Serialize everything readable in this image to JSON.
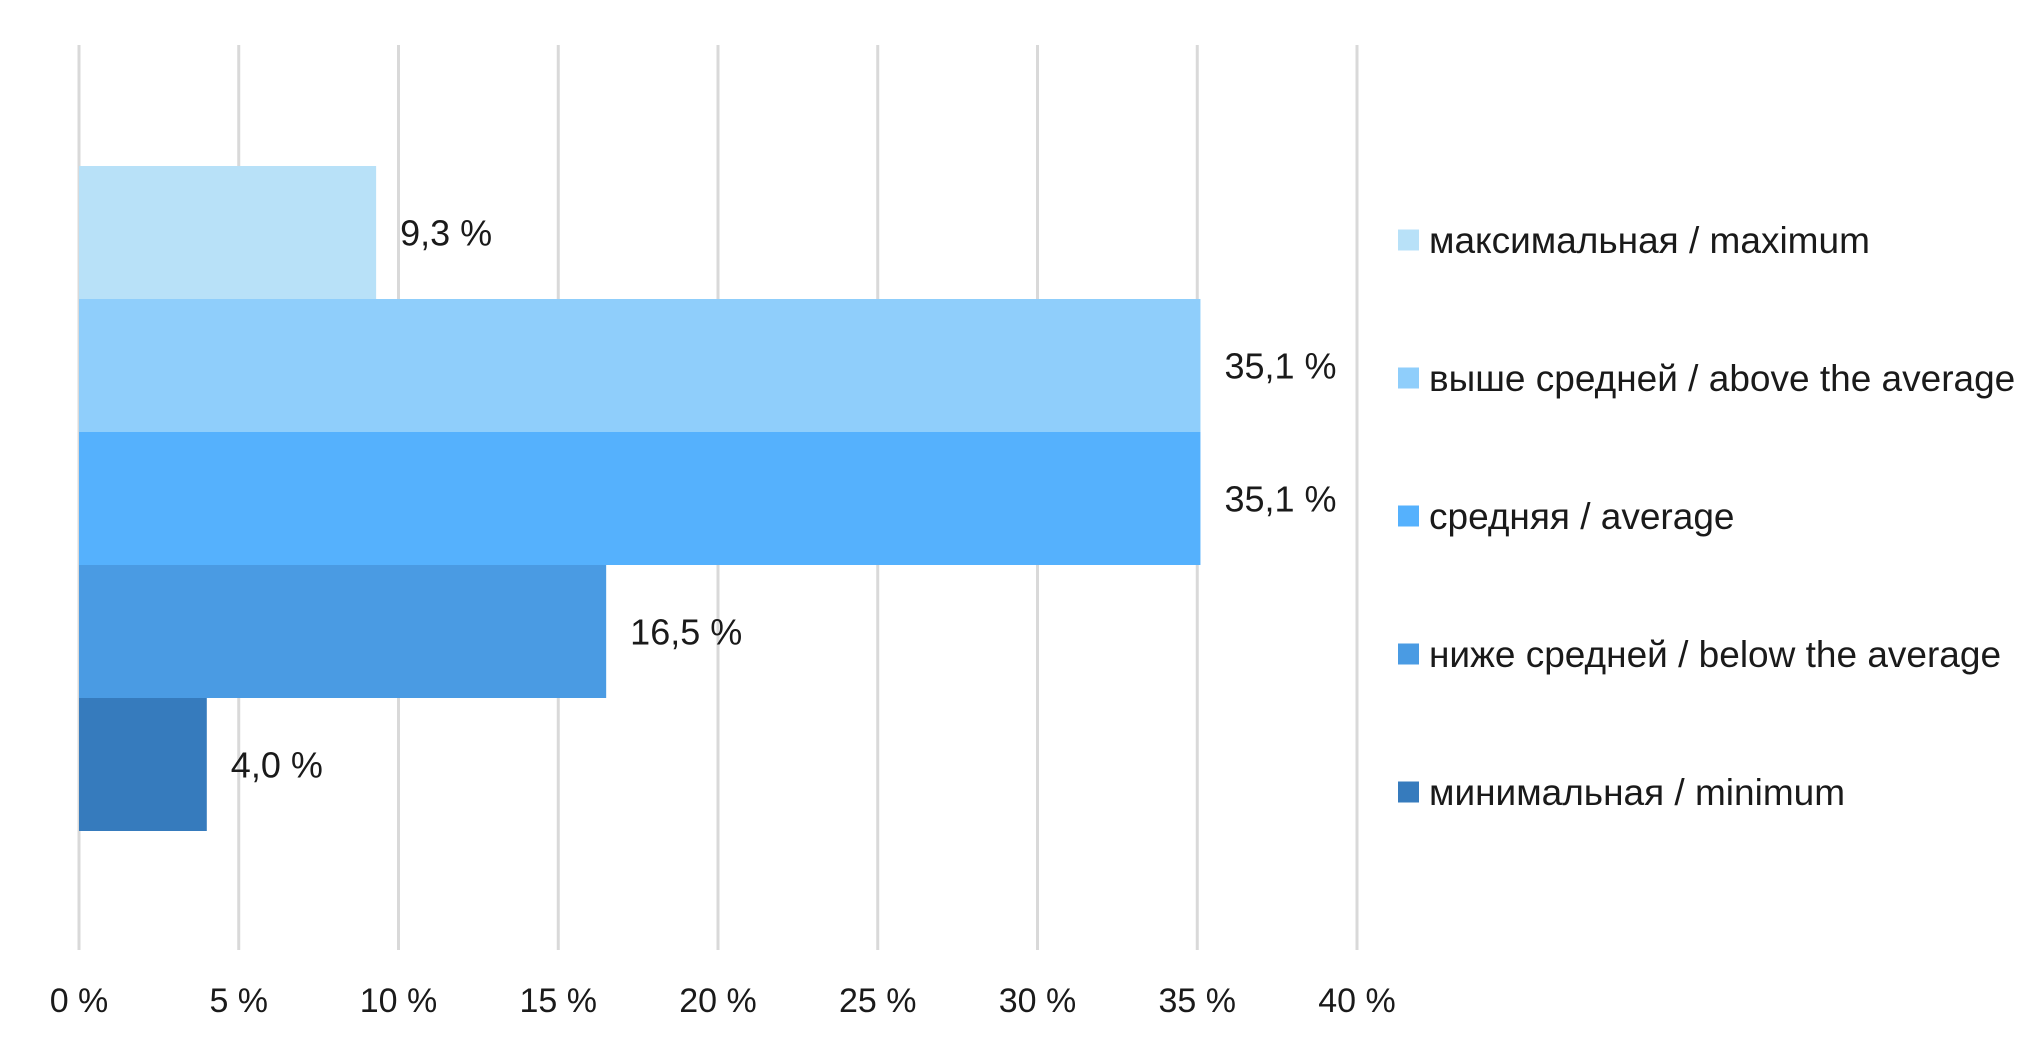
{
  "chart_data": {
    "type": "bar",
    "orientation": "horizontal",
    "xlim": [
      0,
      40
    ],
    "x_ticks": [
      0,
      5,
      10,
      15,
      20,
      25,
      30,
      35,
      40
    ],
    "x_tick_labels": [
      "0 %",
      "5 %",
      "10 %",
      "15 %",
      "20 %",
      "25 %",
      "30 %",
      "35 %",
      "40 %"
    ],
    "grid": "vertical",
    "legend_position": "right",
    "series": [
      {
        "name": "максимальная / maximum",
        "value": 9.3,
        "label": "9,3 %",
        "color": "#b8e1f8"
      },
      {
        "name": "выше средней / above the average",
        "value": 35.1,
        "label": "35,1 %",
        "color": "#8fcefb"
      },
      {
        "name": "средняя / average",
        "value": 35.1,
        "label": "35,1 %",
        "color": "#55b1fd"
      },
      {
        "name": "ниже средней / below the average",
        "value": 16.5,
        "label": "16,5 %",
        "color": "#4a9be3"
      },
      {
        "name": "минимальная / minimum",
        "value": 4.0,
        "label": "4,0 %",
        "color": "#367bbd"
      }
    ]
  }
}
